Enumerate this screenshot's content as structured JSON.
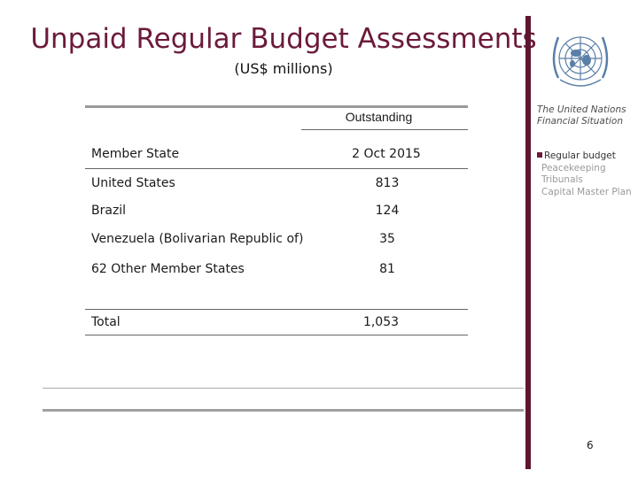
{
  "header": {
    "title": "Unpaid Regular Budget Assessments",
    "subtitle": "(US$ millions)"
  },
  "sidebar": {
    "logo_icon": "un-emblem-icon",
    "section_title": "The United Nations Financial Situation",
    "nav": [
      "Regular budget",
      "Peacekeeping",
      "Tribunals",
      "Capital Master Plan"
    ],
    "active_index": 0
  },
  "table": {
    "group_header": "Outstanding",
    "col_member": "Member State",
    "col_date": "2 Oct 2015",
    "rows": [
      {
        "state": "United States",
        "amount": "813"
      },
      {
        "state": "Brazil",
        "amount": "124"
      },
      {
        "state": "Venezuela (Bolivarian Republic of)",
        "amount": "35"
      },
      {
        "state": "62 Other Member States",
        "amount": "81"
      }
    ],
    "total_label": "Total",
    "total_amount": "1,053"
  },
  "page_number": "6",
  "colors": {
    "accent": "#6b1a3c",
    "bar": "#5e1530"
  }
}
